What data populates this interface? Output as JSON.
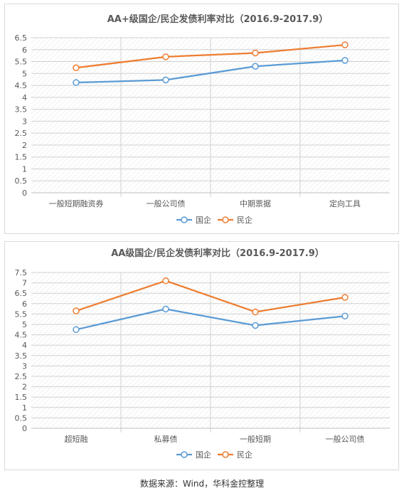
{
  "chart_data": [
    {
      "type": "line",
      "title": "AA+级国企/民企发债利率对比（2016.9-2017.9）",
      "categories": [
        "一般短期融资券",
        "一般公司债",
        "中期票据",
        "定向工具"
      ],
      "series": [
        {
          "name": "国企",
          "values": [
            4.62,
            4.73,
            5.3,
            5.55
          ]
        },
        {
          "name": "民企",
          "values": [
            5.24,
            5.7,
            5.86,
            6.2
          ]
        }
      ],
      "y_ticks": [
        "0",
        "0.5",
        "1",
        "1.5",
        "2",
        "2.5",
        "3",
        "3.5",
        "4",
        "4.5",
        "5",
        "5.5",
        "6",
        "6.5"
      ],
      "ylim": [
        0,
        6.5
      ],
      "grid": true,
      "legend_position": "bottom"
    },
    {
      "type": "line",
      "title": "AA级国企/民企发债利率对比（2016.9-2017.9）",
      "categories": [
        "超短融",
        "私募债",
        "一般短期",
        "一般公司债"
      ],
      "series": [
        {
          "name": "国企",
          "values": [
            4.75,
            5.74,
            4.95,
            5.4
          ]
        },
        {
          "name": "民企",
          "values": [
            5.65,
            7.1,
            5.6,
            6.3
          ]
        }
      ],
      "y_ticks": [
        "0",
        "0.5",
        "1",
        "1.5",
        "2",
        "2.5",
        "3",
        "3.5",
        "4",
        "4.5",
        "5",
        "5.5",
        "6",
        "6.5",
        "7",
        "7.5"
      ],
      "ylim": [
        0,
        7.5
      ],
      "grid": true,
      "legend_position": "bottom"
    }
  ],
  "colors": {
    "国企": "#5b9bd5",
    "民企": "#ed7d31"
  },
  "source": "数据来源：Wind，华科金控整理"
}
